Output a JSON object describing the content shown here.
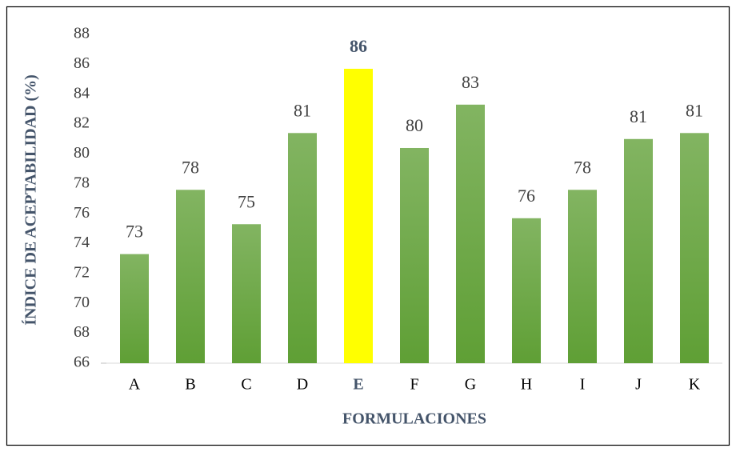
{
  "chart_data": {
    "type": "bar",
    "ylabel": "ÍNDICE DE ACEPTABILIDAD (%)",
    "xlabel": "FORMULACIONES",
    "categories": [
      "A",
      "B",
      "C",
      "D",
      "E",
      "F",
      "G",
      "H",
      "I",
      "J",
      "K"
    ],
    "values": [
      73.3,
      77.6,
      75.3,
      81.4,
      85.7,
      80.4,
      83.3,
      75.7,
      77.6,
      81.0,
      81.4
    ],
    "value_labels": [
      "73",
      "78",
      "75",
      "81",
      "86",
      "80",
      "83",
      "76",
      "78",
      "81",
      "81"
    ],
    "color": "#5f9f35",
    "highlight": "E",
    "highlight_color": "#ffff00",
    "ylim": [
      66,
      88
    ],
    "yticks": [
      66,
      68,
      70,
      72,
      74,
      76,
      78,
      80,
      82,
      84,
      86,
      88
    ]
  }
}
